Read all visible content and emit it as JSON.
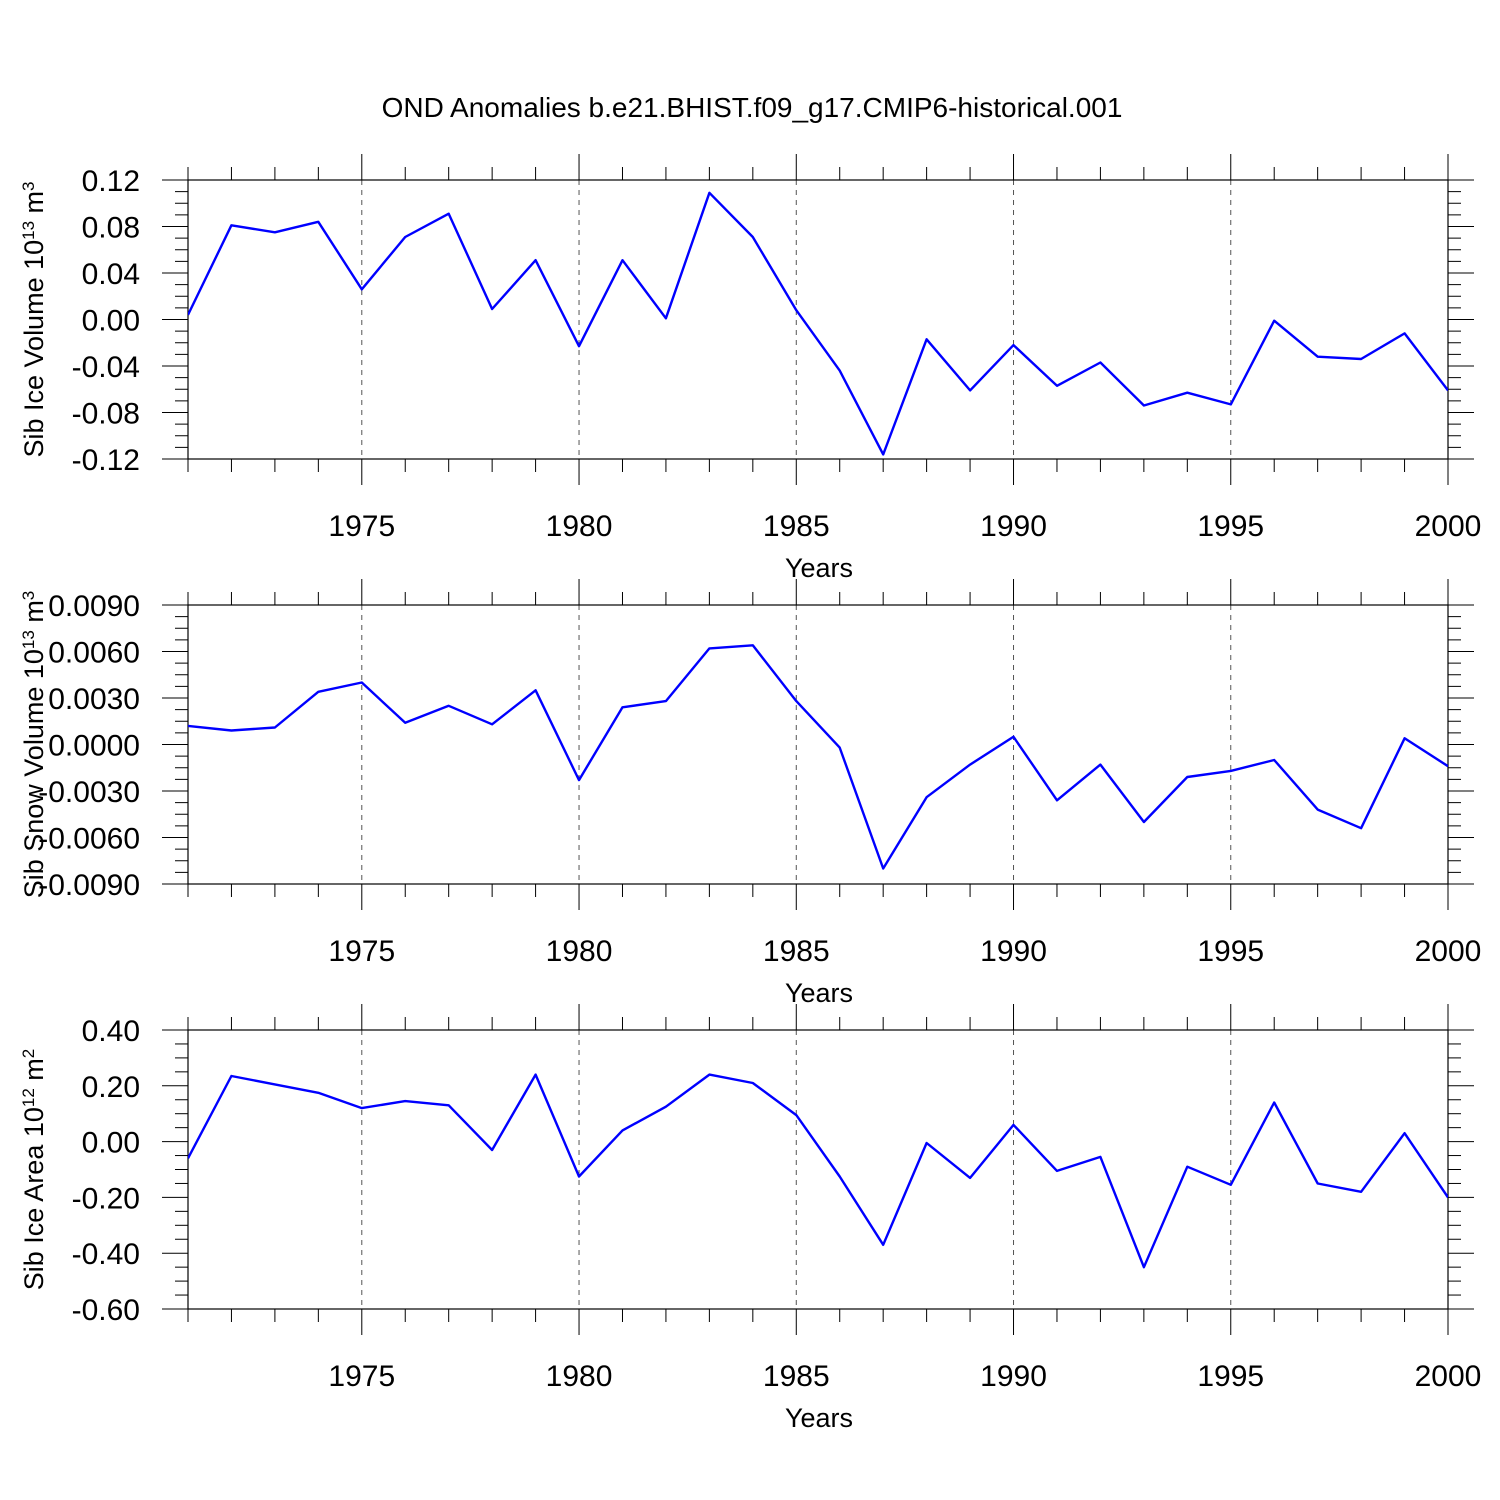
{
  "title": "OND Anomalies b.e21.BHIST.f09_g17.CMIP6-historical.001",
  "style": {
    "line_color": "#0000ff",
    "axis_color": "#000000",
    "grid_color": "#555555"
  },
  "chart_data": [
    {
      "type": "line",
      "ylabel": "Sib Ice Volume 10",
      "ylabel_exp": "13",
      "ylabel_unit": " m",
      "ylabel_unit_exp": "3",
      "xlabel": "Years",
      "xlim": [
        1971,
        2000
      ],
      "ylim": [
        -0.12,
        0.12
      ],
      "yticks": [
        "0.12",
        "0.08",
        "0.04",
        "0.00",
        "-0.04",
        "-0.08",
        "-0.12"
      ],
      "ytick_values": [
        0.12,
        0.08,
        0.04,
        0.0,
        -0.04,
        -0.08,
        -0.12
      ],
      "xticks": [
        "1975",
        "1980",
        "1985",
        "1990",
        "1995",
        "2000"
      ],
      "xtick_values": [
        1975,
        1980,
        1985,
        1990,
        1995,
        2000
      ],
      "grid": "vertical dashed at labeled years",
      "series": [
        {
          "x": [
            1971,
            1972,
            1973,
            1974,
            1975,
            1976,
            1977,
            1978,
            1979,
            1980,
            1981,
            1982,
            1983,
            1984,
            1985,
            1986,
            1987,
            1988,
            1989,
            1990,
            1991,
            1992,
            1993,
            1994,
            1995,
            1996,
            1997,
            1998,
            1999,
            2000
          ],
          "values": [
            0.004,
            0.081,
            0.075,
            0.084,
            0.026,
            0.071,
            0.091,
            0.009,
            0.051,
            -0.023,
            0.051,
            0.001,
            0.109,
            0.071,
            0.008,
            -0.044,
            -0.116,
            -0.017,
            -0.061,
            -0.022,
            -0.057,
            -0.037,
            -0.074,
            -0.063,
            -0.073,
            -0.001,
            -0.032,
            -0.034,
            -0.012,
            -0.061
          ]
        }
      ]
    },
    {
      "type": "line",
      "ylabel": "Sib Snow Volume 10",
      "ylabel_exp": "13",
      "ylabel_unit": " m",
      "ylabel_unit_exp": "3",
      "xlabel": "Years",
      "xlim": [
        1971,
        2000
      ],
      "ylim": [
        -0.009,
        0.009
      ],
      "yticks": [
        "0.0090",
        "0.0060",
        "0.0030",
        "0.0000",
        "-0.0030",
        "-0.0060",
        "-0.0090"
      ],
      "ytick_values": [
        0.009,
        0.006,
        0.003,
        0.0,
        -0.003,
        -0.006,
        -0.009
      ],
      "xticks": [
        "1975",
        "1980",
        "1985",
        "1990",
        "1995",
        "2000"
      ],
      "xtick_values": [
        1975,
        1980,
        1985,
        1990,
        1995,
        2000
      ],
      "grid": "vertical dashed at labeled years",
      "series": [
        {
          "x": [
            1971,
            1972,
            1973,
            1974,
            1975,
            1976,
            1977,
            1978,
            1979,
            1980,
            1981,
            1982,
            1983,
            1984,
            1985,
            1986,
            1987,
            1988,
            1989,
            1990,
            1991,
            1992,
            1993,
            1994,
            1995,
            1996,
            1997,
            1998,
            1999,
            2000
          ],
          "values": [
            0.0012,
            0.0009,
            0.0011,
            0.0034,
            0.004,
            0.0014,
            0.0025,
            0.0013,
            0.0035,
            -0.0023,
            0.0024,
            0.0028,
            0.0062,
            0.0064,
            0.0028,
            -0.0002,
            -0.008,
            -0.0034,
            -0.0013,
            0.0005,
            -0.0036,
            -0.0013,
            -0.005,
            -0.0021,
            -0.0017,
            -0.001,
            -0.0042,
            -0.0054,
            0.0004,
            -0.0014
          ]
        }
      ]
    },
    {
      "type": "line",
      "ylabel": "Sib Ice Area 10",
      "ylabel_exp": "12",
      "ylabel_unit": " m",
      "ylabel_unit_exp": "2",
      "xlabel": "Years",
      "xlim": [
        1971,
        2000
      ],
      "ylim": [
        -0.6,
        0.4
      ],
      "yticks": [
        "0.40",
        "0.20",
        "0.00",
        "-0.20",
        "-0.40",
        "-0.60"
      ],
      "ytick_values": [
        0.4,
        0.2,
        0.0,
        -0.2,
        -0.4,
        -0.6
      ],
      "xticks": [
        "1975",
        "1980",
        "1985",
        "1990",
        "1995",
        "2000"
      ],
      "xtick_values": [
        1975,
        1980,
        1985,
        1990,
        1995,
        2000
      ],
      "grid": "vertical dashed at labeled years",
      "series": [
        {
          "x": [
            1971,
            1972,
            1973,
            1974,
            1975,
            1976,
            1977,
            1978,
            1979,
            1980,
            1981,
            1982,
            1983,
            1984,
            1985,
            1986,
            1987,
            1988,
            1989,
            1990,
            1991,
            1992,
            1993,
            1994,
            1995,
            1996,
            1997,
            1998,
            1999,
            2000
          ],
          "values": [
            -0.06,
            0.235,
            0.205,
            0.175,
            0.12,
            0.145,
            0.13,
            -0.03,
            0.24,
            -0.125,
            0.04,
            0.125,
            0.24,
            0.21,
            0.095,
            -0.125,
            -0.37,
            -0.005,
            -0.13,
            0.06,
            -0.105,
            -0.055,
            -0.45,
            -0.09,
            -0.155,
            0.14,
            -0.15,
            -0.18,
            0.03,
            -0.2
          ]
        }
      ]
    }
  ]
}
